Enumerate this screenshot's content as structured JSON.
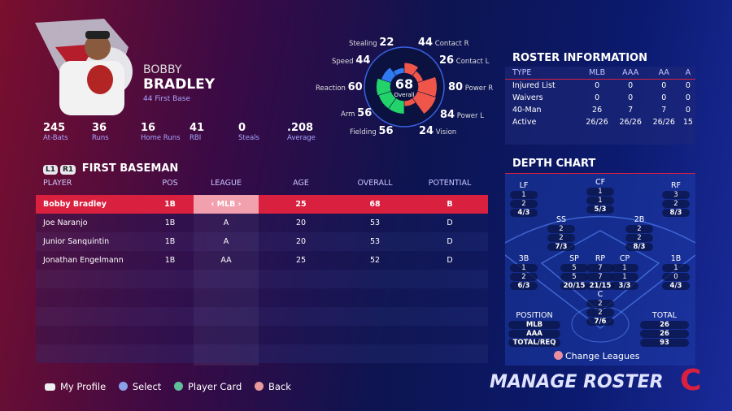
{
  "player": {
    "first_name": "BOBBY",
    "last_name": "BRADLEY",
    "number_position": "44  First Base",
    "stats": [
      {
        "value": "245",
        "label": "At-Bats"
      },
      {
        "value": "36",
        "label": "Runs"
      },
      {
        "value": "16",
        "label": "Home Runs"
      },
      {
        "value": "41",
        "label": "RBI"
      },
      {
        "value": "0",
        "label": "Steals"
      },
      {
        "value": ".208",
        "label": "Average"
      }
    ]
  },
  "radar": {
    "overall": "68",
    "overall_label": "Overall",
    "attributes": [
      {
        "label": "Contact R",
        "value": 44,
        "color": "#f0554a"
      },
      {
        "label": "Contact L",
        "value": 26,
        "color": "#f0554a"
      },
      {
        "label": "Power R",
        "value": 80,
        "color": "#f0554a"
      },
      {
        "label": "Power L",
        "value": 84,
        "color": "#f0554a"
      },
      {
        "label": "Vision",
        "value": 24,
        "color": "#f0554a"
      },
      {
        "label": "Fielding",
        "value": 56,
        "color": "#22d36a"
      },
      {
        "label": "Arm",
        "value": 56,
        "color": "#22d36a"
      },
      {
        "label": "Reaction",
        "value": 60,
        "color": "#22d36a"
      },
      {
        "label": "Speed",
        "value": 44,
        "color": "#2f7af0"
      },
      {
        "label": "Stealing",
        "value": 22,
        "color": "#2f7af0"
      }
    ]
  },
  "position_table": {
    "tags": [
      "L1",
      "R1"
    ],
    "title": "FIRST BASEMAN",
    "headers": [
      "PLAYER",
      "POS",
      "LEAGUE",
      "AGE",
      "OVERALL",
      "POTENTIAL"
    ],
    "rows": [
      [
        "Bobby Bradley",
        "1B",
        "MLB",
        "25",
        "68",
        "B"
      ],
      [
        "Joe Naranjo",
        "1B",
        "A",
        "20",
        "53",
        "D"
      ],
      [
        "Junior Sanquintin",
        "1B",
        "A",
        "20",
        "53",
        "D"
      ],
      [
        "Jonathan Engelmann",
        "1B",
        "AA",
        "25",
        "52",
        "D"
      ]
    ],
    "selected_row": 0
  },
  "roster_info": {
    "title": "ROSTER INFORMATION",
    "headers": [
      "TYPE",
      "MLB",
      "AAA",
      "AA",
      "A"
    ],
    "rows": [
      [
        "Injured List",
        "0",
        "0",
        "0",
        "0"
      ],
      [
        "Waivers",
        "0",
        "0",
        "0",
        "0"
      ],
      [
        "40-Man",
        "26",
        "7",
        "7",
        "0"
      ],
      [
        "Active",
        "26/26",
        "26/26",
        "26/26",
        "15"
      ]
    ]
  },
  "depth_chart": {
    "title": "DEPTH CHART",
    "positions": {
      "LF": [
        "1",
        "2",
        "4/3"
      ],
      "CF": [
        "1",
        "1",
        "5/3"
      ],
      "RF": [
        "3",
        "2",
        "8/3"
      ],
      "SS": [
        "2",
        "2",
        "7/3"
      ],
      "2B": [
        "2",
        "2",
        "8/3"
      ],
      "3B": [
        "1",
        "2",
        "6/3"
      ],
      "SP": [
        "5",
        "5",
        "20/15"
      ],
      "RP": [
        "7",
        "7",
        "21/15"
      ],
      "CP": [
        "1",
        "1",
        "3/3"
      ],
      "1B": [
        "1",
        "0",
        "4/3"
      ],
      "C": [
        "2",
        "2",
        "7/6"
      ]
    },
    "legend_title": "POSITION",
    "legend_rows": [
      "MLB",
      "AAA",
      "TOTAL/REQ"
    ],
    "total_title": "TOTAL",
    "totals": [
      "26",
      "26",
      "93"
    ],
    "change_leagues": "Change Leagues"
  },
  "footer": {
    "my_profile": "My Profile",
    "select": "Select",
    "player_card": "Player Card",
    "back": "Back"
  },
  "screen_title": "MANAGE ROSTER",
  "colors": {
    "accent": "#d9203f",
    "label": "#a9a6ff"
  }
}
